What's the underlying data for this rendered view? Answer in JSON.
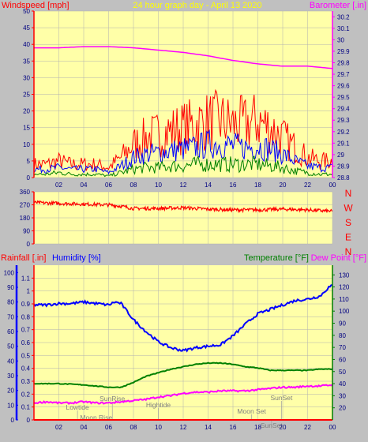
{
  "title": "24 hour graph day - April 13 2020",
  "colors": {
    "background": "#c0c0c0",
    "plot_bg": "#ffffa8",
    "grid": "#b0b0b0",
    "wind_gust": "#ff0000",
    "wind_avg": "#0000ff",
    "wind_low": "#008000",
    "barometer": "#ff00ff",
    "direction": "#ff0000",
    "humidity": "#0000ff",
    "temperature": "#008000",
    "dew_point": "#ff00ff",
    "rainfall": "#ff0000",
    "title_text": "#ffff00",
    "event_text": "#808080"
  },
  "labels": {
    "windspeed": "Windspeed [mph]",
    "barometer": "Barometer [.in]",
    "rainfall": "Rainfall [.in]",
    "humidity": "Humidity [%]",
    "temperature": "Temperature [°F]",
    "dew_point": "Dew Point [°F]"
  },
  "chart_data": [
    {
      "type": "line",
      "name": "wind-barometer",
      "x_ticks": [
        "02",
        "04",
        "06",
        "08",
        "10",
        "12",
        "14",
        "16",
        "18",
        "20",
        "22",
        "00"
      ],
      "xlim": [
        0,
        24
      ],
      "ylabel_left": "Windspeed [mph]",
      "ylim_left": [
        0,
        50
      ],
      "yticks_left": [
        0,
        5,
        10,
        15,
        20,
        25,
        30,
        35,
        40,
        45,
        50
      ],
      "ylabel_right": "Barometer [.in]",
      "ylim_right": [
        28.8,
        30.25
      ],
      "yticks_right": [
        28.8,
        28.9,
        29.0,
        29.1,
        29.2,
        29.3,
        29.4,
        29.5,
        29.6,
        29.7,
        29.8,
        29.9,
        30.0,
        30.1,
        30.2
      ],
      "yticks_right_labels": [
        "28.8",
        "28.9",
        "29",
        "29.1",
        "29.2",
        "29.3",
        "29.4",
        "29.5",
        "29.6",
        "29.7",
        "29.8",
        "29.9",
        "30",
        "30.1",
        "30.2"
      ],
      "series": [
        {
          "name": "gust",
          "axis": "left",
          "x": [
            0,
            1,
            2,
            3,
            4,
            5,
            6,
            7,
            8,
            9,
            10,
            11,
            12,
            13,
            14,
            15,
            16,
            17,
            18,
            19,
            20,
            21,
            22,
            23,
            24
          ],
          "values": [
            4,
            4,
            5,
            4,
            4,
            4,
            3,
            6,
            10,
            12,
            13,
            14,
            15,
            16,
            17,
            17,
            16,
            16,
            17,
            15,
            12,
            9,
            6,
            5,
            5
          ]
        },
        {
          "name": "average",
          "axis": "left",
          "x": [
            0,
            1,
            2,
            3,
            4,
            5,
            6,
            7,
            8,
            9,
            10,
            11,
            12,
            13,
            14,
            15,
            16,
            17,
            18,
            19,
            20,
            21,
            22,
            23,
            24
          ],
          "values": [
            2.5,
            2.5,
            3,
            2.5,
            2.5,
            2.5,
            1.5,
            3.5,
            6,
            7,
            7.5,
            8,
            8.5,
            9,
            10,
            10,
            9.5,
            9,
            9.5,
            8.5,
            7,
            5,
            3.5,
            3,
            3
          ]
        },
        {
          "name": "low",
          "axis": "left",
          "x": [
            0,
            1,
            2,
            3,
            4,
            5,
            6,
            7,
            8,
            9,
            10,
            11,
            12,
            13,
            14,
            15,
            16,
            17,
            18,
            19,
            20,
            21,
            22,
            23,
            24
          ],
          "values": [
            1,
            1,
            1.5,
            1,
            1,
            1,
            0.5,
            1.5,
            2.5,
            3,
            3,
            3.5,
            3.5,
            4,
            4,
            4,
            4,
            4,
            4,
            3.5,
            3,
            2,
            1.5,
            1,
            1
          ]
        },
        {
          "name": "barometer",
          "axis": "right",
          "x": [
            0,
            2,
            4,
            6,
            8,
            10,
            12,
            14,
            16,
            18,
            20,
            22,
            24
          ],
          "values": [
            29.93,
            29.93,
            29.94,
            29.94,
            29.93,
            29.91,
            29.89,
            29.86,
            29.82,
            29.79,
            29.77,
            29.77,
            29.75
          ]
        }
      ]
    },
    {
      "type": "line",
      "name": "wind-direction",
      "x_ticks": [],
      "xlim": [
        0,
        24
      ],
      "ylim": [
        0,
        360
      ],
      "yticks": [
        0,
        90,
        180,
        270,
        360
      ],
      "right_labels": [
        "N",
        "W",
        "S",
        "E",
        "N"
      ],
      "series": [
        {
          "name": "direction",
          "x": [
            0,
            2,
            4,
            6,
            7,
            8,
            10,
            12,
            14,
            16,
            18,
            20,
            22,
            24
          ],
          "values": [
            285,
            280,
            275,
            270,
            260,
            245,
            245,
            250,
            240,
            235,
            235,
            240,
            235,
            225
          ]
        }
      ]
    },
    {
      "type": "line",
      "name": "rain-humidity-temperature",
      "x_ticks": [
        "02",
        "04",
        "06",
        "08",
        "10",
        "12",
        "14",
        "16",
        "18",
        "20",
        "22",
        "00"
      ],
      "xlim": [
        0,
        24
      ],
      "ylim_rain": [
        0,
        1.2
      ],
      "yticks_rain": [
        0,
        0.1,
        0.2,
        0.3,
        0.4,
        0.5,
        0.6,
        0.7,
        0.8,
        0.9,
        1.0,
        1.1
      ],
      "yticks_rain_labels": [
        "0",
        "0.1",
        "0.2",
        "0.3",
        "0.4",
        "0.5",
        "0.6",
        "0.7",
        "0.8",
        "0.9",
        "1",
        "1.1"
      ],
      "ylim_humidity": [
        0,
        105
      ],
      "yticks_humidity": [
        0,
        10,
        20,
        30,
        40,
        50,
        60,
        70,
        80,
        90,
        100
      ],
      "ylim_temperature": [
        10,
        138
      ],
      "yticks_temperature": [
        20,
        30,
        40,
        50,
        60,
        70,
        80,
        90,
        100,
        110,
        120,
        130
      ],
      "series": [
        {
          "name": "humidity",
          "x": [
            0,
            1,
            2,
            3,
            4,
            5,
            6,
            6.5,
            7,
            8,
            9,
            10,
            11,
            12,
            13,
            14,
            15,
            16,
            17,
            18,
            19,
            20,
            21,
            22,
            23,
            23.7,
            24
          ],
          "values": [
            78,
            78,
            79,
            79,
            80,
            79,
            78,
            80,
            79,
            68,
            60,
            53,
            49,
            47,
            49,
            50,
            51,
            57,
            65,
            72,
            75,
            78,
            81,
            82,
            84,
            90,
            91
          ]
        },
        {
          "name": "temperature",
          "x": [
            0,
            2,
            4,
            5,
            6,
            7,
            8,
            9,
            10,
            11,
            12,
            13,
            14,
            15,
            16,
            17,
            18,
            19,
            20,
            21,
            22,
            23,
            24
          ],
          "values": [
            40,
            40,
            39,
            38,
            37,
            37,
            41,
            46,
            49,
            52,
            54,
            56,
            57,
            57,
            56,
            54,
            53,
            51,
            51,
            51,
            51,
            52,
            52
          ]
        },
        {
          "name": "dew_point",
          "x": [
            0,
            1,
            2,
            3,
            4,
            5,
            6,
            7,
            8,
            9,
            10,
            11,
            12,
            13,
            14,
            15,
            16,
            17,
            18,
            19,
            20,
            21,
            22,
            23,
            24
          ],
          "values": [
            24,
            25,
            24,
            24,
            25,
            24,
            24,
            25,
            26,
            27,
            29,
            30,
            32,
            33,
            33,
            34,
            34,
            34,
            35,
            36,
            37,
            37,
            38,
            38,
            39
          ]
        },
        {
          "name": "rainfall",
          "x": [
            0,
            24
          ],
          "values": [
            0,
            0
          ]
        }
      ],
      "events": [
        {
          "label": "Lowtide",
          "x": 3.5
        },
        {
          "label": "Moon Rise",
          "x": 5.0
        },
        {
          "label": "SunRise",
          "x": 6.3
        },
        {
          "label": "Hightide",
          "x": 10.0
        },
        {
          "label": "Moon Set",
          "x": 17.5
        },
        {
          "label": "SunSet",
          "x": 19.9
        },
        {
          "label": "SunSet",
          "x": 19.1
        }
      ]
    }
  ]
}
